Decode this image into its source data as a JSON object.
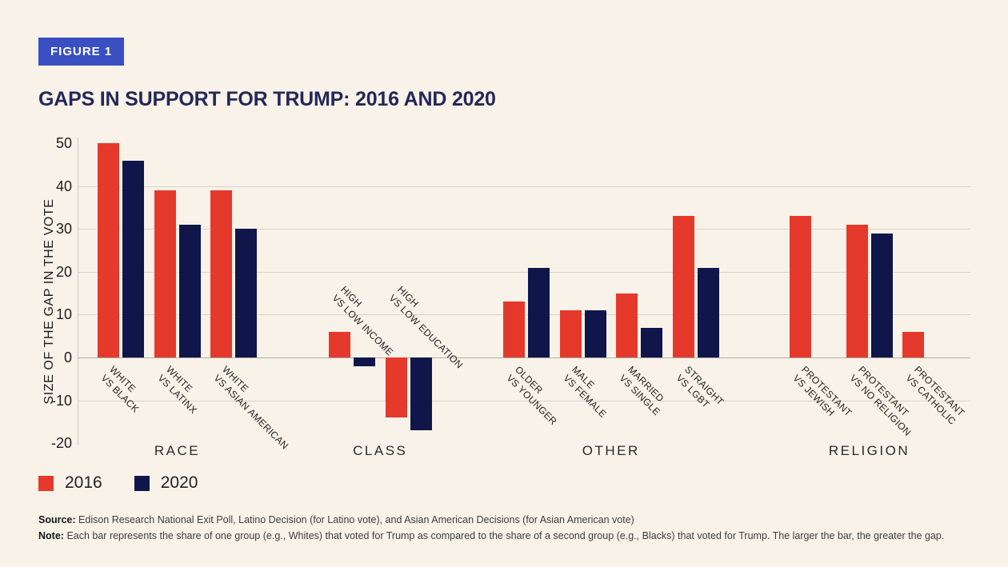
{
  "figure_label": "FIGURE 1",
  "colors": {
    "background": "#f9f2e8",
    "badge_blue": "#3a4fc1",
    "title_navy": "#23285a",
    "red_2016": "#e5392b",
    "navy_2020": "#10164a",
    "gridline": "#d9d2c8"
  },
  "chart_data": {
    "type": "bar",
    "title": "GAPS IN SUPPORT FOR TRUMP: 2016 AND 2020",
    "xlabel": "",
    "ylabel": "SIZE OF THE GAP IN THE VOTE",
    "ylim": [
      -20,
      50
    ],
    "yticks": [
      50,
      40,
      30,
      20,
      10,
      0,
      -10,
      -20
    ],
    "gridlines": [
      40,
      30,
      20,
      10,
      0,
      -10
    ],
    "grid": "horizontal",
    "legend_position": "bottom-left",
    "series": [
      {
        "name": "2016",
        "color": "#e5392b"
      },
      {
        "name": "2020",
        "color": "#10164a"
      }
    ],
    "groups": [
      {
        "label": "RACE",
        "categories": [
          {
            "lines": [
              "WHITE",
              "VS BLACK"
            ],
            "values": [
              50,
              46
            ]
          },
          {
            "lines": [
              "WHITE",
              "VS LATINX"
            ],
            "values": [
              39,
              31
            ]
          },
          {
            "lines": [
              "WHITE",
              "VS ASIAN AMERICAN"
            ],
            "values": [
              39,
              30
            ]
          }
        ]
      },
      {
        "label": "CLASS",
        "categories": [
          {
            "lines": [
              "HIGH",
              "VS LOW INCOME"
            ],
            "values": [
              6,
              -2
            ],
            "label_above": true
          },
          {
            "lines": [
              "HIGH",
              "VS LOW EDUCATION"
            ],
            "values": [
              -14,
              -17
            ],
            "label_above": true
          }
        ]
      },
      {
        "label": "OTHER",
        "categories": [
          {
            "lines": [
              "OLDER",
              "VS YOUNGER"
            ],
            "values": [
              13,
              21
            ]
          },
          {
            "lines": [
              "MALE",
              "VS FEMALE"
            ],
            "values": [
              11,
              11
            ]
          },
          {
            "lines": [
              "MARRIED",
              "VS SINGLE"
            ],
            "values": [
              15,
              7
            ]
          },
          {
            "lines": [
              "STRAIGHT",
              "VS LGBT"
            ],
            "values": [
              33,
              21
            ]
          }
        ]
      },
      {
        "label": "RELIGION",
        "categories": [
          {
            "lines": [
              "PROTESTANT",
              "VS JEWISH"
            ],
            "values": [
              33,
              null
            ]
          },
          {
            "lines": [
              "PROTESTANT",
              "VS NO RELIGION"
            ],
            "values": [
              31,
              29
            ]
          },
          {
            "lines": [
              "PROTESTANT",
              "VS CATHOLIC"
            ],
            "values": [
              6,
              null
            ]
          }
        ]
      }
    ]
  },
  "footer": {
    "source_label": "Source:",
    "source_text": "Edison Research National Exit Poll, Latino Decision (for Latino vote), and Asian American Decisions (for Asian American vote)",
    "note_label": "Note:",
    "note_text": "Each bar represents the share of one group (e.g., Whites) that voted for Trump as compared to the share of a second group (e.g., Blacks) that voted for Trump. The larger the bar, the greater the gap."
  }
}
